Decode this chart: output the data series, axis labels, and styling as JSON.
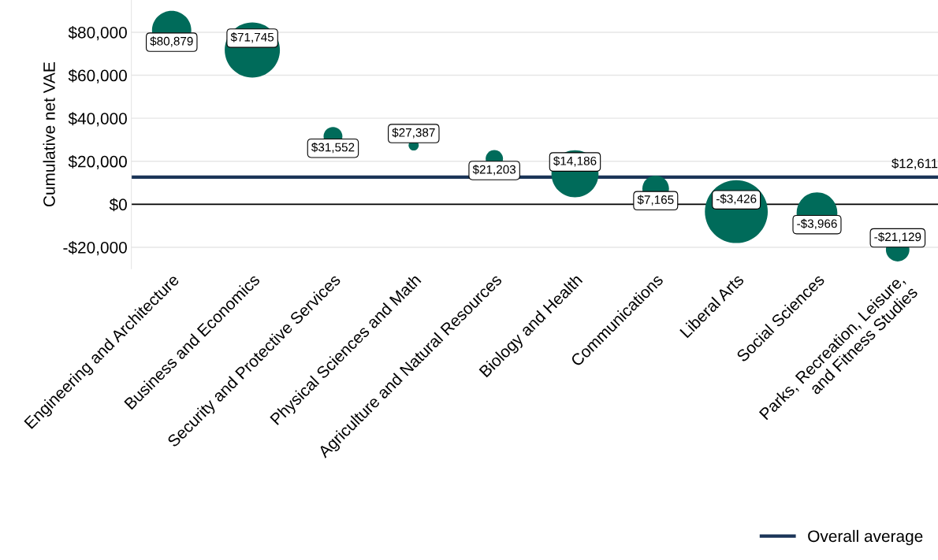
{
  "chart_data": {
    "type": "bubble",
    "ylabel": "Cumulative net VAE",
    "categories": [
      "Engineering and Architecture",
      "Business and Economics",
      "Security and Protective Services",
      "Physical Sciences and Math",
      "Agriculture and Natural Resources",
      "Biology and Health",
      "Communications",
      "Liberal Arts",
      "Social Sciences",
      "Parks, Recreation, Leisure,\nand Fitness Studies"
    ],
    "values": [
      80879,
      71745,
      31552,
      27387,
      21203,
      14186,
      7165,
      -3426,
      -3966,
      -21129
    ],
    "sizes": [
      0.39,
      0.77,
      0.09,
      0.026,
      0.076,
      0.56,
      0.18,
      1,
      0.42,
      0.14
    ],
    "value_labels": [
      "$80,879",
      "$71,745",
      "$31,552",
      "$27,387",
      "$21,203",
      "$14,186",
      "$7,165",
      "-$3,426",
      "-$3,966",
      "-$21,129"
    ],
    "color": "#006b5a",
    "ylim": [
      -30000,
      95000
    ],
    "yticks": [
      {
        "value": -20000,
        "label": "-$20,000"
      },
      {
        "value": 0,
        "label": "$0"
      },
      {
        "value": 20000,
        "label": "$20,000"
      },
      {
        "value": 40000,
        "label": "$40,000"
      },
      {
        "value": 60000,
        "label": "$60,000"
      },
      {
        "value": 80000,
        "label": "$80,000"
      }
    ],
    "grid": "y",
    "ref_lines": [
      {
        "axis": "y",
        "value": 0,
        "color": "#000000"
      },
      {
        "axis": "y",
        "value": 12611,
        "label": "Overall average",
        "color": "#1b3558"
      }
    ],
    "annotations": [
      {
        "text": "$12,611",
        "x": "Parks, Recreation, Leisure,\nand Fitness Studies",
        "y": 12611
      }
    ],
    "legend": "bottom right"
  }
}
